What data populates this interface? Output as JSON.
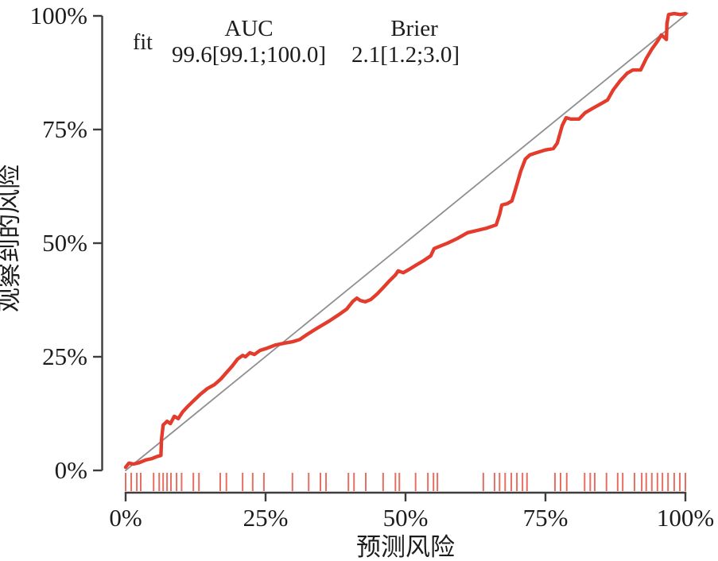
{
  "figure": {
    "background": "#ffffff",
    "axis_color": "#3d3d3d",
    "text_color": "#1c1c1c"
  },
  "chart_data": {
    "type": "line",
    "title": "",
    "xlabel": "预测风险",
    "ylabel": "观察到的风险",
    "xlim": [
      0,
      100
    ],
    "ylim": [
      0,
      100
    ],
    "grid": false,
    "x_tick_positions": [
      0,
      25,
      50,
      75,
      100
    ],
    "x_tick_labels": [
      "0%",
      "25%",
      "50%",
      "75%",
      "100%"
    ],
    "y_tick_positions": [
      0,
      25,
      50,
      75,
      100
    ],
    "y_tick_labels": [
      "0%",
      "25%",
      "50%",
      "75%",
      "100%"
    ],
    "legend": {
      "fit": "fit",
      "auc_header": "AUC",
      "auc_value": "99.6[99.1;100.0]",
      "brier_header": "Brier",
      "brier_value": "2.1[1.2;3.0]"
    },
    "series": [
      {
        "name": "ideal-diagonal",
        "color": "#8f8f8f",
        "width": 1.8,
        "points": [
          [
            0,
            0
          ],
          [
            100.4,
            100.6
          ]
        ]
      },
      {
        "name": "calibration-curve",
        "color": "#e33b2c",
        "width": 4.4,
        "points": [
          [
            0,
            0.7
          ],
          [
            0.6,
            1.6
          ],
          [
            1.4,
            1.4
          ],
          [
            2.4,
            1.7
          ],
          [
            3.6,
            2.3
          ],
          [
            4.7,
            2.6
          ],
          [
            5.5,
            3.0
          ],
          [
            6.3,
            3.3
          ],
          [
            6.4,
            6.8
          ],
          [
            6.7,
            10.0
          ],
          [
            7.4,
            10.8
          ],
          [
            8.0,
            10.3
          ],
          [
            8.7,
            11.9
          ],
          [
            9.4,
            11.4
          ],
          [
            10.2,
            12.9
          ],
          [
            11.2,
            14.2
          ],
          [
            12.2,
            15.4
          ],
          [
            13.4,
            16.8
          ],
          [
            14.6,
            18.0
          ],
          [
            15.9,
            18.9
          ],
          [
            17.0,
            20.1
          ],
          [
            18.0,
            21.5
          ],
          [
            19.0,
            22.9
          ],
          [
            20.0,
            24.5
          ],
          [
            20.9,
            25.3
          ],
          [
            21.4,
            25.0
          ],
          [
            22.2,
            25.9
          ],
          [
            23.0,
            25.5
          ],
          [
            24.0,
            26.4
          ],
          [
            25.3,
            26.9
          ],
          [
            26.8,
            27.6
          ],
          [
            28.4,
            28.0
          ],
          [
            29.8,
            28.3
          ],
          [
            31.1,
            28.8
          ],
          [
            32.4,
            29.9
          ],
          [
            33.7,
            30.9
          ],
          [
            34.9,
            31.8
          ],
          [
            36.4,
            32.9
          ],
          [
            37.9,
            34.1
          ],
          [
            39.5,
            35.5
          ],
          [
            40.6,
            37.2
          ],
          [
            41.3,
            37.9
          ],
          [
            41.9,
            37.4
          ],
          [
            42.8,
            37.1
          ],
          [
            43.8,
            37.6
          ],
          [
            44.9,
            38.8
          ],
          [
            46.0,
            40.2
          ],
          [
            47.2,
            41.8
          ],
          [
            48.2,
            43.0
          ],
          [
            48.7,
            43.9
          ],
          [
            49.6,
            43.5
          ],
          [
            50.6,
            44.2
          ],
          [
            51.8,
            45.1
          ],
          [
            53.3,
            46.2
          ],
          [
            54.5,
            47.2
          ],
          [
            55.1,
            48.8
          ],
          [
            56.1,
            49.3
          ],
          [
            57.5,
            50.0
          ],
          [
            59.2,
            51.0
          ],
          [
            61.1,
            52.3
          ],
          [
            62.8,
            52.8
          ],
          [
            64.5,
            53.3
          ],
          [
            66.2,
            54.0
          ],
          [
            66.8,
            56.3
          ],
          [
            67.2,
            58.4
          ],
          [
            68.2,
            58.7
          ],
          [
            69.0,
            59.3
          ],
          [
            69.7,
            62.1
          ],
          [
            70.6,
            65.9
          ],
          [
            71.4,
            68.5
          ],
          [
            72.2,
            69.4
          ],
          [
            73.4,
            69.9
          ],
          [
            75.0,
            70.5
          ],
          [
            76.4,
            70.8
          ],
          [
            77.1,
            72.0
          ],
          [
            78.0,
            75.9
          ],
          [
            78.7,
            77.6
          ],
          [
            79.5,
            77.3
          ],
          [
            81.0,
            77.3
          ],
          [
            82.1,
            78.7
          ],
          [
            83.5,
            79.7
          ],
          [
            85.1,
            80.8
          ],
          [
            86.1,
            81.5
          ],
          [
            87.1,
            83.7
          ],
          [
            88.4,
            85.8
          ],
          [
            89.6,
            87.4
          ],
          [
            90.6,
            88.1
          ],
          [
            92.0,
            88.1
          ],
          [
            93.0,
            90.6
          ],
          [
            94.0,
            92.7
          ],
          [
            95.0,
            94.4
          ],
          [
            95.7,
            95.8
          ],
          [
            96.2,
            95.3
          ],
          [
            96.6,
            94.8
          ],
          [
            96.7,
            98.3
          ],
          [
            97.0,
            100.3
          ],
          [
            98.0,
            100.5
          ],
          [
            99.1,
            100.3
          ],
          [
            100,
            100.5
          ]
        ]
      }
    ],
    "rug": {
      "color": "#e04a3b",
      "opacity": 0.8,
      "x": [
        0,
        1,
        2,
        2.7,
        5,
        6,
        6.7,
        7.4,
        8.1,
        9.1,
        10,
        12.1,
        13.1,
        16.9,
        18,
        20.9,
        22.7,
        24.7,
        29.8,
        32.7,
        34.8,
        35.8,
        39.8,
        40.8,
        42.9,
        46,
        48.2,
        48.9,
        51.8,
        54,
        55,
        55.7,
        63.9,
        65.9,
        66.8,
        67.8,
        68.9,
        69.9,
        70.9,
        71.7,
        76.7,
        77.7,
        78.8,
        82,
        83,
        83.8,
        85.9,
        87.9,
        88.8,
        90.9,
        92.2,
        93,
        94,
        95,
        95.9,
        96.9,
        98,
        99,
        100
      ]
    }
  }
}
